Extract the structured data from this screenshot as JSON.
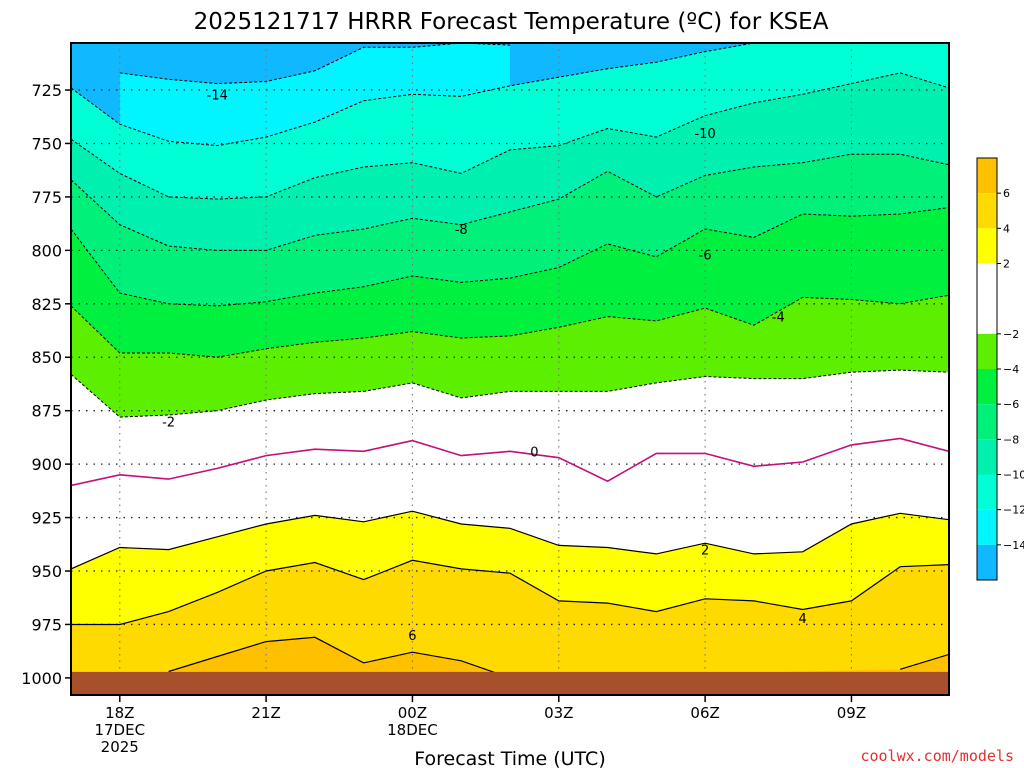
{
  "chart_data": {
    "type": "contour",
    "title": "2025121717 HRRR Forecast Temperature (ºC) for KSEA",
    "xlabel": "Forecast Time (UTC)",
    "ylabel": "",
    "credit": "coolwx.com/models",
    "x_tick_labels": [
      {
        "hour": 18,
        "lines": [
          "18Z",
          "17DEC",
          "2025"
        ]
      },
      {
        "hour": 21,
        "lines": [
          "21Z"
        ]
      },
      {
        "hour": 24,
        "lines": [
          "00Z",
          "18DEC"
        ]
      },
      {
        "hour": 27,
        "lines": [
          "03Z"
        ]
      },
      {
        "hour": 30,
        "lines": [
          "06Z"
        ]
      },
      {
        "hour": 33,
        "lines": [
          "09Z"
        ]
      }
    ],
    "xlim_hours": [
      17,
      35
    ],
    "ylim_hPa": [
      1008,
      703
    ],
    "y_ticks_hPa": [
      725,
      750,
      775,
      800,
      825,
      850,
      875,
      900,
      925,
      950,
      975,
      1000
    ],
    "grid": true,
    "surface_hPa": 1000,
    "hours": [
      17,
      18,
      19,
      20,
      21,
      22,
      23,
      24,
      25,
      26,
      27,
      28,
      29,
      30,
      31,
      32,
      33,
      34,
      35
    ],
    "isotherms": [
      {
        "level": -14,
        "label": "-14",
        "label_at": [
          20,
          727
        ],
        "pressure_hPa": [
          null,
          717,
          720,
          722,
          721,
          716,
          705,
          705,
          703,
          704,
          null,
          null,
          null,
          null,
          null,
          null,
          null,
          null,
          null
        ]
      },
      {
        "level": -12,
        "label": "",
        "pressure_hPa": [
          724,
          741,
          749,
          751,
          747,
          740,
          730,
          727,
          728,
          723,
          719,
          715,
          712,
          707,
          703,
          703,
          703,
          703,
          703
        ]
      },
      {
        "level": -10,
        "label": "-10",
        "label_at": [
          30,
          745
        ],
        "pressure_hPa": [
          748,
          764,
          775,
          776,
          775,
          766,
          761,
          759,
          764,
          753,
          751,
          743,
          747,
          737,
          731,
          727,
          722,
          717,
          724
        ]
      },
      {
        "level": -8,
        "label": "-8",
        "label_at": [
          25,
          790
        ],
        "pressure_hPa": [
          767,
          788,
          798,
          800,
          800,
          793,
          790,
          785,
          788,
          782,
          776,
          763,
          775,
          765,
          761,
          759,
          755,
          755,
          760
        ]
      },
      {
        "level": -6,
        "label": "-6",
        "label_at": [
          30,
          802
        ],
        "pressure_hPa": [
          790,
          820,
          825,
          826,
          824,
          820,
          817,
          812,
          815,
          813,
          808,
          797,
          803,
          790,
          794,
          783,
          784,
          783,
          780
        ]
      },
      {
        "level": -4,
        "label": "-4",
        "label_at": [
          31.5,
          831
        ],
        "pressure_hPa": [
          826,
          848,
          848,
          850,
          846,
          843,
          841,
          838,
          841,
          840,
          836,
          831,
          833,
          827,
          835,
          822,
          823,
          825,
          821
        ]
      },
      {
        "level": -2,
        "label": "-2",
        "label_at": [
          19,
          880
        ],
        "pressure_hPa": [
          858,
          878,
          877,
          875,
          870,
          867,
          866,
          862,
          869,
          866,
          866,
          866,
          862,
          859,
          860,
          860,
          857,
          856,
          857
        ]
      },
      {
        "level": 0,
        "label": "0",
        "label_at": [
          26.5,
          894
        ],
        "pressure_hPa": [
          910,
          905,
          907,
          902,
          896,
          893,
          894,
          889,
          896,
          894,
          897,
          908,
          895,
          895,
          901,
          899,
          891,
          888,
          894
        ]
      },
      {
        "level": 2,
        "label": "2",
        "label_at": [
          30,
          940
        ],
        "pressure_hPa": [
          949,
          939,
          940,
          934,
          928,
          924,
          927,
          922,
          928,
          930,
          938,
          939,
          942,
          937,
          942,
          941,
          928,
          923,
          926
        ]
      },
      {
        "level": 4,
        "label": "4",
        "label_at": [
          32,
          972
        ],
        "pressure_hPa": [
          975,
          975,
          969,
          960,
          950,
          946,
          954,
          945,
          949,
          951,
          964,
          965,
          969,
          963,
          964,
          968,
          964,
          948,
          947
        ]
      },
      {
        "level": 6,
        "label": "6",
        "label_at": [
          24,
          980
        ],
        "pressure_hPa": [
          null,
          null,
          997,
          990,
          983,
          981,
          993,
          988,
          992,
          1000,
          null,
          null,
          null,
          null,
          null,
          null,
          null,
          996,
          989
        ]
      }
    ],
    "colorbar": {
      "ticks": [
        6,
        4,
        2,
        -2,
        -4,
        -6,
        -8,
        -10,
        -12,
        -14
      ],
      "tick_labels": [
        "6",
        "4",
        "2",
        "−2",
        "−4",
        "−6",
        "−8",
        "−10",
        "−12",
        "−14"
      ],
      "bands": [
        {
          "from": 6,
          "to": 8,
          "color": "#ffc000"
        },
        {
          "from": 4,
          "to": 6,
          "color": "#ffda00"
        },
        {
          "from": 2,
          "to": 4,
          "color": "#ffff00"
        },
        {
          "from": -2,
          "to": 2,
          "color": "#ffffff"
        },
        {
          "from": -4,
          "to": -2,
          "color": "#5cf000"
        },
        {
          "from": -6,
          "to": -4,
          "color": "#00f040"
        },
        {
          "from": -8,
          "to": -6,
          "color": "#00f07a"
        },
        {
          "from": -10,
          "to": -8,
          "color": "#00f0b0"
        },
        {
          "from": -12,
          "to": -10,
          "color": "#00ffd5"
        },
        {
          "from": -14,
          "to": -12,
          "color": "#00f5ff"
        },
        {
          "from": -16,
          "to": -14,
          "color": "#10b8ff"
        }
      ]
    },
    "colors": {
      "zero_line": "#c0107a",
      "negative_line": "#000000",
      "positive_line": "#000000",
      "ground": "#a8502c",
      "credit": "#e03030",
      "grid": "#666666"
    }
  }
}
